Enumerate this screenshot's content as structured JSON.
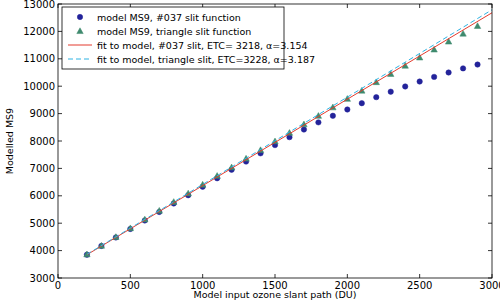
{
  "chart_data": {
    "type": "scatter",
    "x_label": "Model input ozone slant path (DU)",
    "y_label": "Modelled MS9",
    "xlim": [
      0,
      3000
    ],
    "ylim": [
      3000,
      13000
    ],
    "xticks": [
      0,
      500,
      1000,
      1500,
      2000,
      2500,
      3000
    ],
    "yticks": [
      3000,
      4000,
      5000,
      6000,
      7000,
      8000,
      9000,
      10000,
      11000,
      12000,
      13000
    ],
    "grid": false,
    "legend": "upper left",
    "series": [
      {
        "name": "model MS9, #037 slit function",
        "type": "scatter",
        "marker": "circle",
        "color": "#23239a",
        "x": [
          200,
          300,
          400,
          500,
          600,
          700,
          800,
          900,
          1000,
          1100,
          1200,
          1300,
          1400,
          1500,
          1600,
          1700,
          1800,
          1900,
          2000,
          2100,
          2200,
          2300,
          2400,
          2500,
          2600,
          2700,
          2800,
          2900
        ],
        "values": [
          3850,
          4170,
          4480,
          4790,
          5100,
          5410,
          5720,
          6020,
          6330,
          6640,
          6950,
          7250,
          7550,
          7850,
          8140,
          8420,
          8680,
          8920,
          9150,
          9380,
          9600,
          9800,
          9990,
          10170,
          10340,
          10500,
          10650,
          10790
        ]
      },
      {
        "name": "model MS9, triangle slit function",
        "type": "scatter",
        "marker": "triangle",
        "color": "#3f8a6e",
        "x": [
          200,
          300,
          400,
          500,
          600,
          700,
          800,
          900,
          1000,
          1100,
          1200,
          1300,
          1400,
          1500,
          1600,
          1700,
          1800,
          1900,
          2000,
          2100,
          2200,
          2300,
          2400,
          2500,
          2600,
          2700,
          2800,
          2900
        ],
        "values": [
          3865,
          4180,
          4500,
          4820,
          5140,
          5460,
          5780,
          6090,
          6410,
          6730,
          7040,
          7360,
          7670,
          7990,
          8300,
          8610,
          8920,
          9230,
          9540,
          9840,
          10150,
          10450,
          10750,
          11050,
          11340,
          11630,
          11920,
          12200
        ]
      },
      {
        "name": "fit to model, #037 slit, ETC= 3218, α=3.154",
        "type": "line",
        "line_style": "solid",
        "color": "#e33b2e",
        "x": [
          200,
          3000
        ],
        "values": [
          3849,
          12680
        ]
      },
      {
        "name": "fit to model, triangle slit, ETC=3228, α=3.187",
        "type": "line",
        "line_style": "dashed",
        "color": "#2fb3e3",
        "x": [
          200,
          3000
        ],
        "values": [
          3865,
          12789
        ]
      }
    ]
  }
}
